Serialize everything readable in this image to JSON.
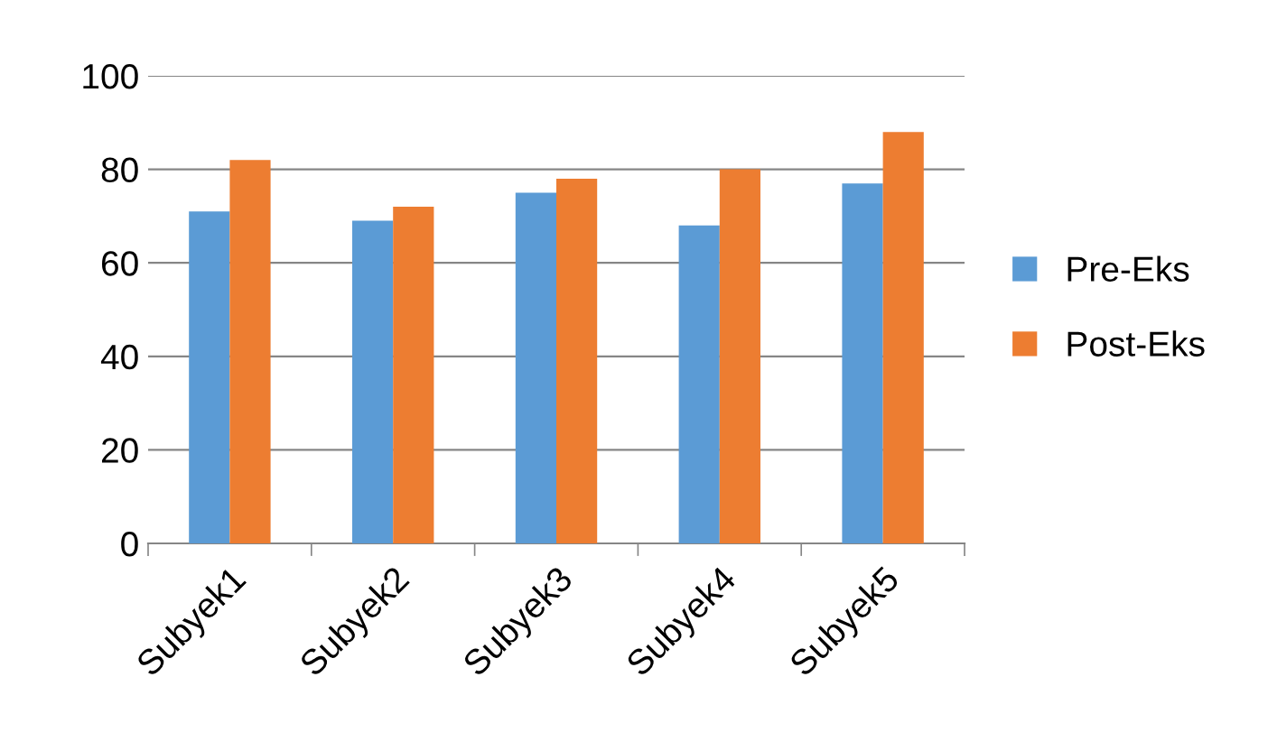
{
  "chart_data": {
    "type": "bar",
    "categories": [
      "Subyek1",
      "Subyek2",
      "Subyek3",
      "Subyek4",
      "Subyek5"
    ],
    "series": [
      {
        "name": "Pre-Eks",
        "color": "#5b9bd5",
        "values": [
          71,
          69,
          75,
          68,
          77
        ]
      },
      {
        "name": "Post-Eks",
        "color": "#ed7d31",
        "values": [
          82,
          72,
          78,
          80,
          88
        ]
      }
    ],
    "ylim": [
      0,
      100
    ],
    "yticks": [
      0,
      20,
      40,
      60,
      80,
      100
    ],
    "grid": "y",
    "legend": "right"
  }
}
